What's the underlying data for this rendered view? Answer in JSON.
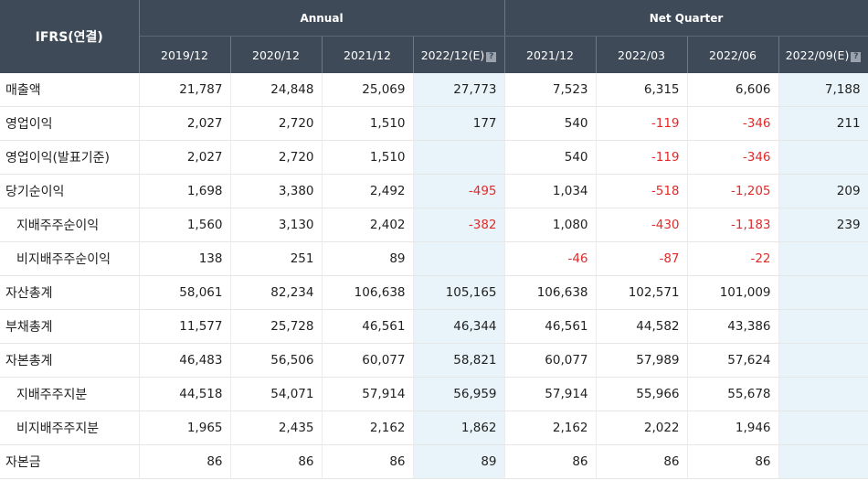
{
  "header": {
    "corner": "IFRS(연결)",
    "annual": "Annual",
    "quarter": "Net Quarter",
    "periods": [
      "2019/12",
      "2020/12",
      "2021/12",
      "2022/12(E)",
      "2021/12",
      "2022/03",
      "2022/06",
      "2022/09(E)"
    ],
    "estimate_icon": "?"
  },
  "rows": [
    {
      "label": "매출액",
      "sub": false,
      "values": [
        "21,787",
        "24,848",
        "25,069",
        "27,773",
        "7,523",
        "6,315",
        "6,606",
        "7,188"
      ]
    },
    {
      "label": "영업이익",
      "sub": false,
      "values": [
        "2,027",
        "2,720",
        "1,510",
        "177",
        "540",
        "-119",
        "-346",
        "211"
      ]
    },
    {
      "label": "영업이익(발표기준)",
      "sub": false,
      "values": [
        "2,027",
        "2,720",
        "1,510",
        "",
        "540",
        "-119",
        "-346",
        ""
      ]
    },
    {
      "label": "당기순이익",
      "sub": false,
      "values": [
        "1,698",
        "3,380",
        "2,492",
        "-495",
        "1,034",
        "-518",
        "-1,205",
        "209"
      ]
    },
    {
      "label": "지배주주순이익",
      "sub": true,
      "values": [
        "1,560",
        "3,130",
        "2,402",
        "-382",
        "1,080",
        "-430",
        "-1,183",
        "239"
      ]
    },
    {
      "label": "비지배주주순이익",
      "sub": true,
      "values": [
        "138",
        "251",
        "89",
        "",
        "-46",
        "-87",
        "-22",
        ""
      ]
    },
    {
      "label": "자산총계",
      "sub": false,
      "values": [
        "58,061",
        "82,234",
        "106,638",
        "105,165",
        "106,638",
        "102,571",
        "101,009",
        ""
      ]
    },
    {
      "label": "부채총계",
      "sub": false,
      "values": [
        "11,577",
        "25,728",
        "46,561",
        "46,344",
        "46,561",
        "44,582",
        "43,386",
        ""
      ]
    },
    {
      "label": "자본총계",
      "sub": false,
      "values": [
        "46,483",
        "56,506",
        "60,077",
        "58,821",
        "60,077",
        "57,989",
        "57,624",
        ""
      ]
    },
    {
      "label": "지배주주지분",
      "sub": true,
      "values": [
        "44,518",
        "54,071",
        "57,914",
        "56,959",
        "57,914",
        "55,966",
        "55,678",
        ""
      ]
    },
    {
      "label": "비지배주주지분",
      "sub": true,
      "values": [
        "1,965",
        "2,435",
        "2,162",
        "1,862",
        "2,162",
        "2,022",
        "1,946",
        ""
      ]
    },
    {
      "label": "자본금",
      "sub": false,
      "values": [
        "86",
        "86",
        "86",
        "89",
        "86",
        "86",
        "86",
        ""
      ]
    }
  ],
  "colors": {
    "header_bg": "#3e4a57",
    "estimate_bg": "#e8f4fa",
    "negative": "#e02b2b"
  }
}
